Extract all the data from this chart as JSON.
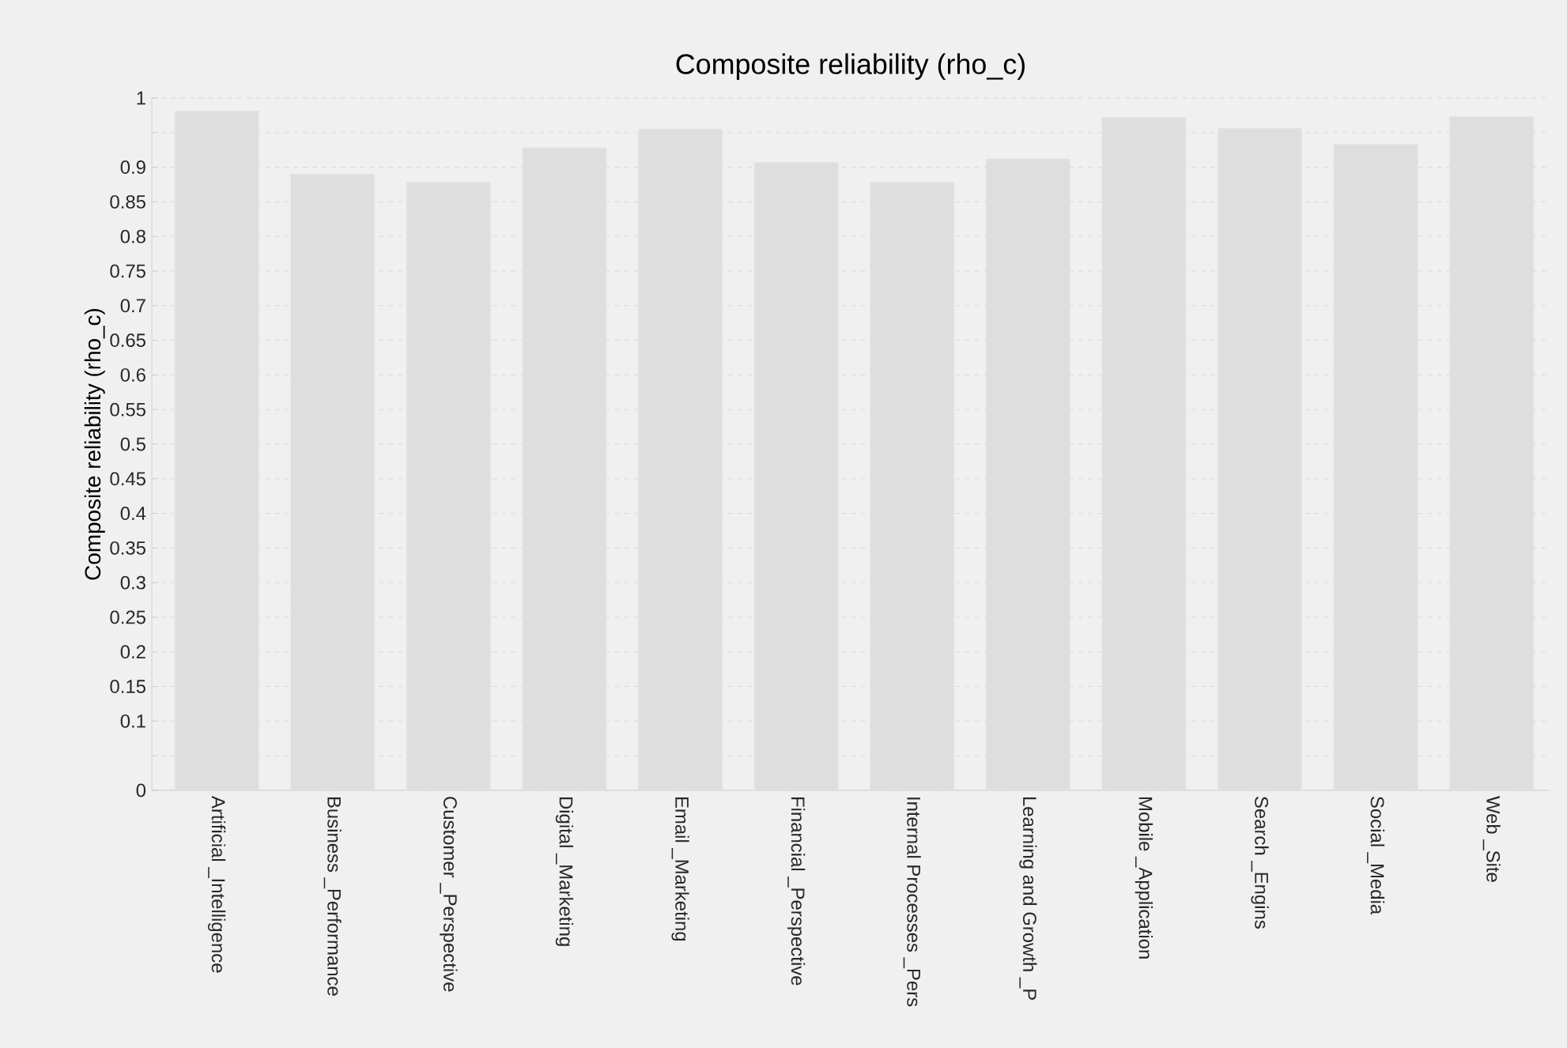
{
  "chart_data": {
    "type": "bar",
    "title": "Composite reliability (rho_c)",
    "ylabel": "Composite reliability (rho_c)",
    "categories": [
      "Artificial _Intelligence",
      "Business _Performance",
      "Customer _Perspective",
      "Digital _Marketing",
      "Email _Marketing",
      "Financial _Perspective",
      "Internal Processes _Pers",
      "Learning and Growth _P",
      "Mobile _Application",
      "Search _Engins",
      "Social _Media",
      "Web _Site"
    ],
    "values": [
      0.981,
      0.89,
      0.878,
      0.928,
      0.955,
      0.907,
      0.878,
      0.912,
      0.972,
      0.956,
      0.933,
      0.973
    ],
    "color": "#dedede",
    "ylim": [
      0,
      1
    ],
    "yticks": [
      0,
      {
        "value": 0.05,
        "label": null
      },
      0.1,
      0.15,
      0.2,
      0.25,
      0.3,
      0.35,
      0.4,
      0.45,
      0.5,
      0.55,
      0.6,
      0.65,
      0.7,
      0.75,
      0.8,
      0.85,
      0.9,
      {
        "value": 0.95,
        "label": null
      },
      1
    ],
    "grid": "y"
  }
}
